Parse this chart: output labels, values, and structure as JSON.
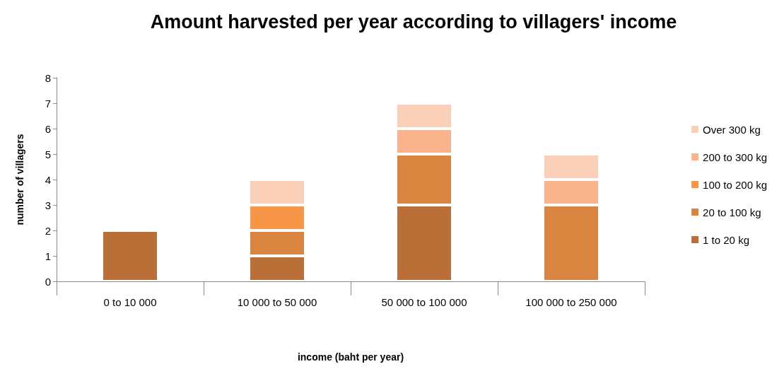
{
  "chart_data": {
    "type": "bar",
    "title": "Amount harvested per year according to villagers' income",
    "xlabel": "income (baht per year)",
    "ylabel": "number of villagers",
    "categories": [
      "0 to 10 000",
      "10 000 to 50 000",
      "50 000 to 100 000",
      "100 000 to 250 000"
    ],
    "series": [
      {
        "name": "1 to 20 kg",
        "color": "#b96f35",
        "values": [
          2,
          1,
          3,
          null
        ]
      },
      {
        "name": "20 to 100 kg",
        "color": "#d9843f",
        "values": [
          null,
          1,
          2,
          3
        ]
      },
      {
        "name": "100 to 200 kg",
        "color": "#f79646",
        "values": [
          null,
          1,
          null,
          null
        ]
      },
      {
        "name": "200 to 300 kg",
        "color": "#f9b48d",
        "values": [
          null,
          null,
          1,
          1
        ]
      },
      {
        "name": "Over 300 kg",
        "color": "#fbd0b9",
        "values": [
          null,
          1,
          1,
          1
        ]
      }
    ],
    "stacked": true,
    "ylim": [
      0,
      8
    ],
    "yticks": [
      0,
      1,
      2,
      3,
      4,
      5,
      6,
      7,
      8
    ],
    "grid": false,
    "legend": "right"
  }
}
